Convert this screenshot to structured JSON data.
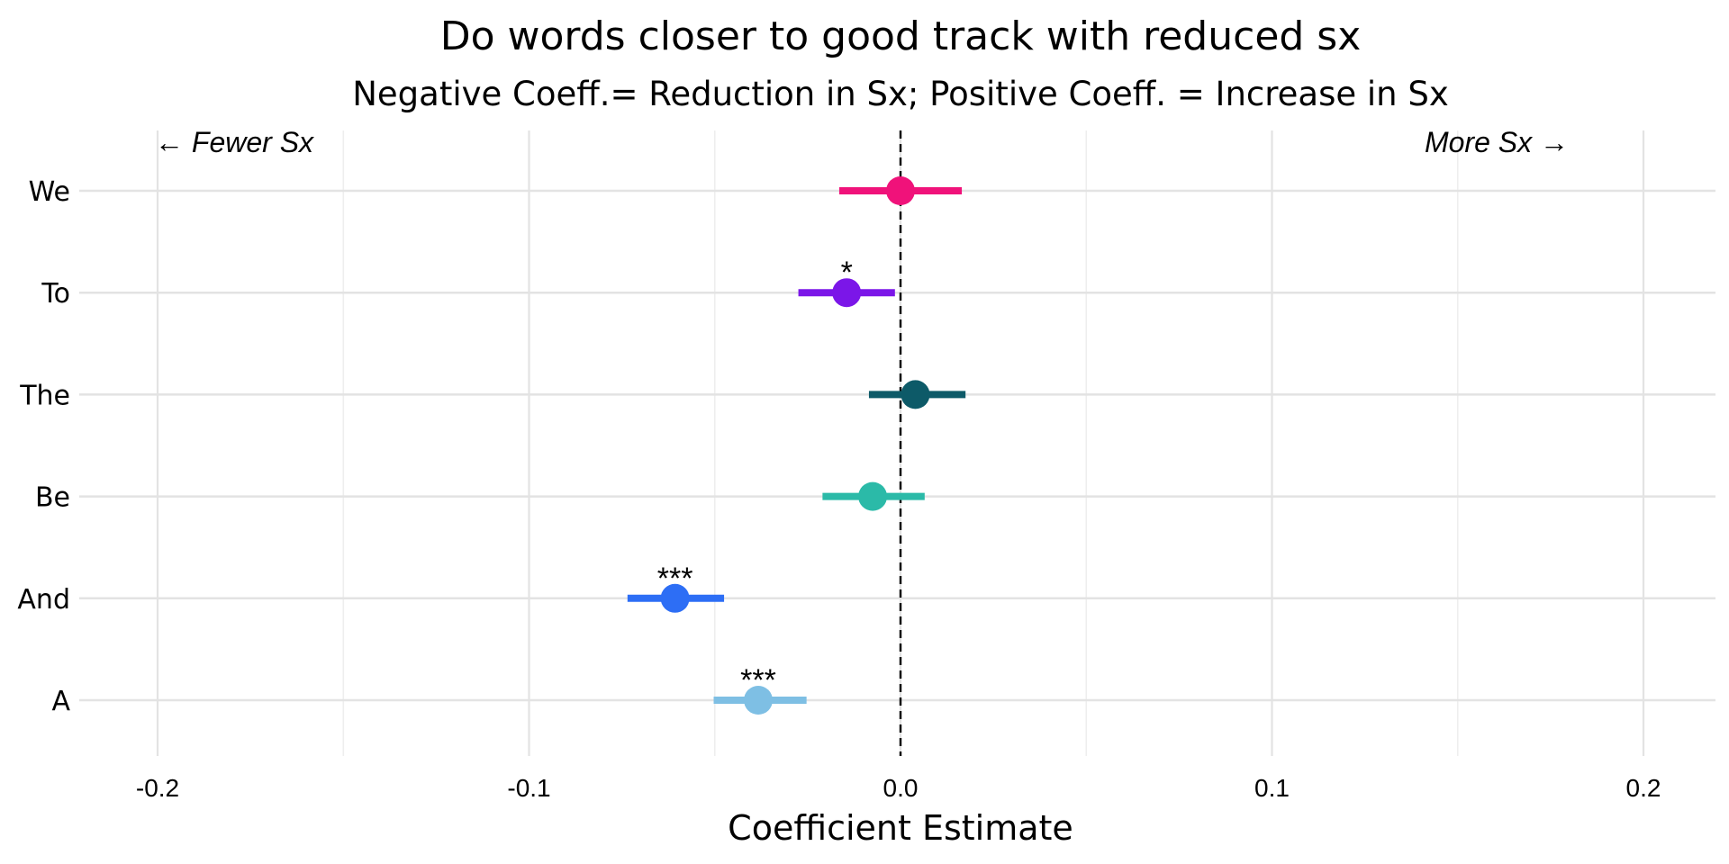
{
  "chart_data": {
    "type": "scatter",
    "subtype": "coefficient-plot",
    "title": "Do words closer to good track with reduced sx",
    "subtitle": "Negative Coeff.= Reduction in Sx; Positive Coeff. = Increase in Sx",
    "xlabel": "Coefficient Estimate",
    "ylabel": "",
    "xlim": [
      -0.221,
      0.221
    ],
    "xticks": [
      -0.2,
      -0.1,
      0.0,
      0.1,
      0.2
    ],
    "xtick_labels": [
      "-0.2",
      "-0.1",
      "0.0",
      "0.1",
      "0.2"
    ],
    "reference_line": {
      "x": 0,
      "style": "dashed",
      "color": "#000000"
    },
    "annotations": {
      "left": "← Fewer Sx",
      "right": "More Sx →"
    },
    "grid": true,
    "legend": "none",
    "categories": [
      "We",
      "To",
      "The",
      "Be",
      "And",
      "A"
    ],
    "estimates": [
      0.0,
      -0.0145,
      0.004,
      -0.0075,
      -0.0607,
      -0.0383
    ],
    "ci_low": [
      -0.0165,
      -0.0275,
      -0.0085,
      -0.021,
      -0.0735,
      -0.0503
    ],
    "ci_high": [
      0.0165,
      -0.0015,
      0.0175,
      0.0065,
      -0.0475,
      -0.0253
    ],
    "significance": [
      "",
      "*",
      "",
      "",
      "***",
      "***"
    ],
    "colors": [
      "#f0127a",
      "#7b16e8",
      "#0d5a68",
      "#2bbaa8",
      "#2d6ef5",
      "#7ebfe4"
    ]
  }
}
